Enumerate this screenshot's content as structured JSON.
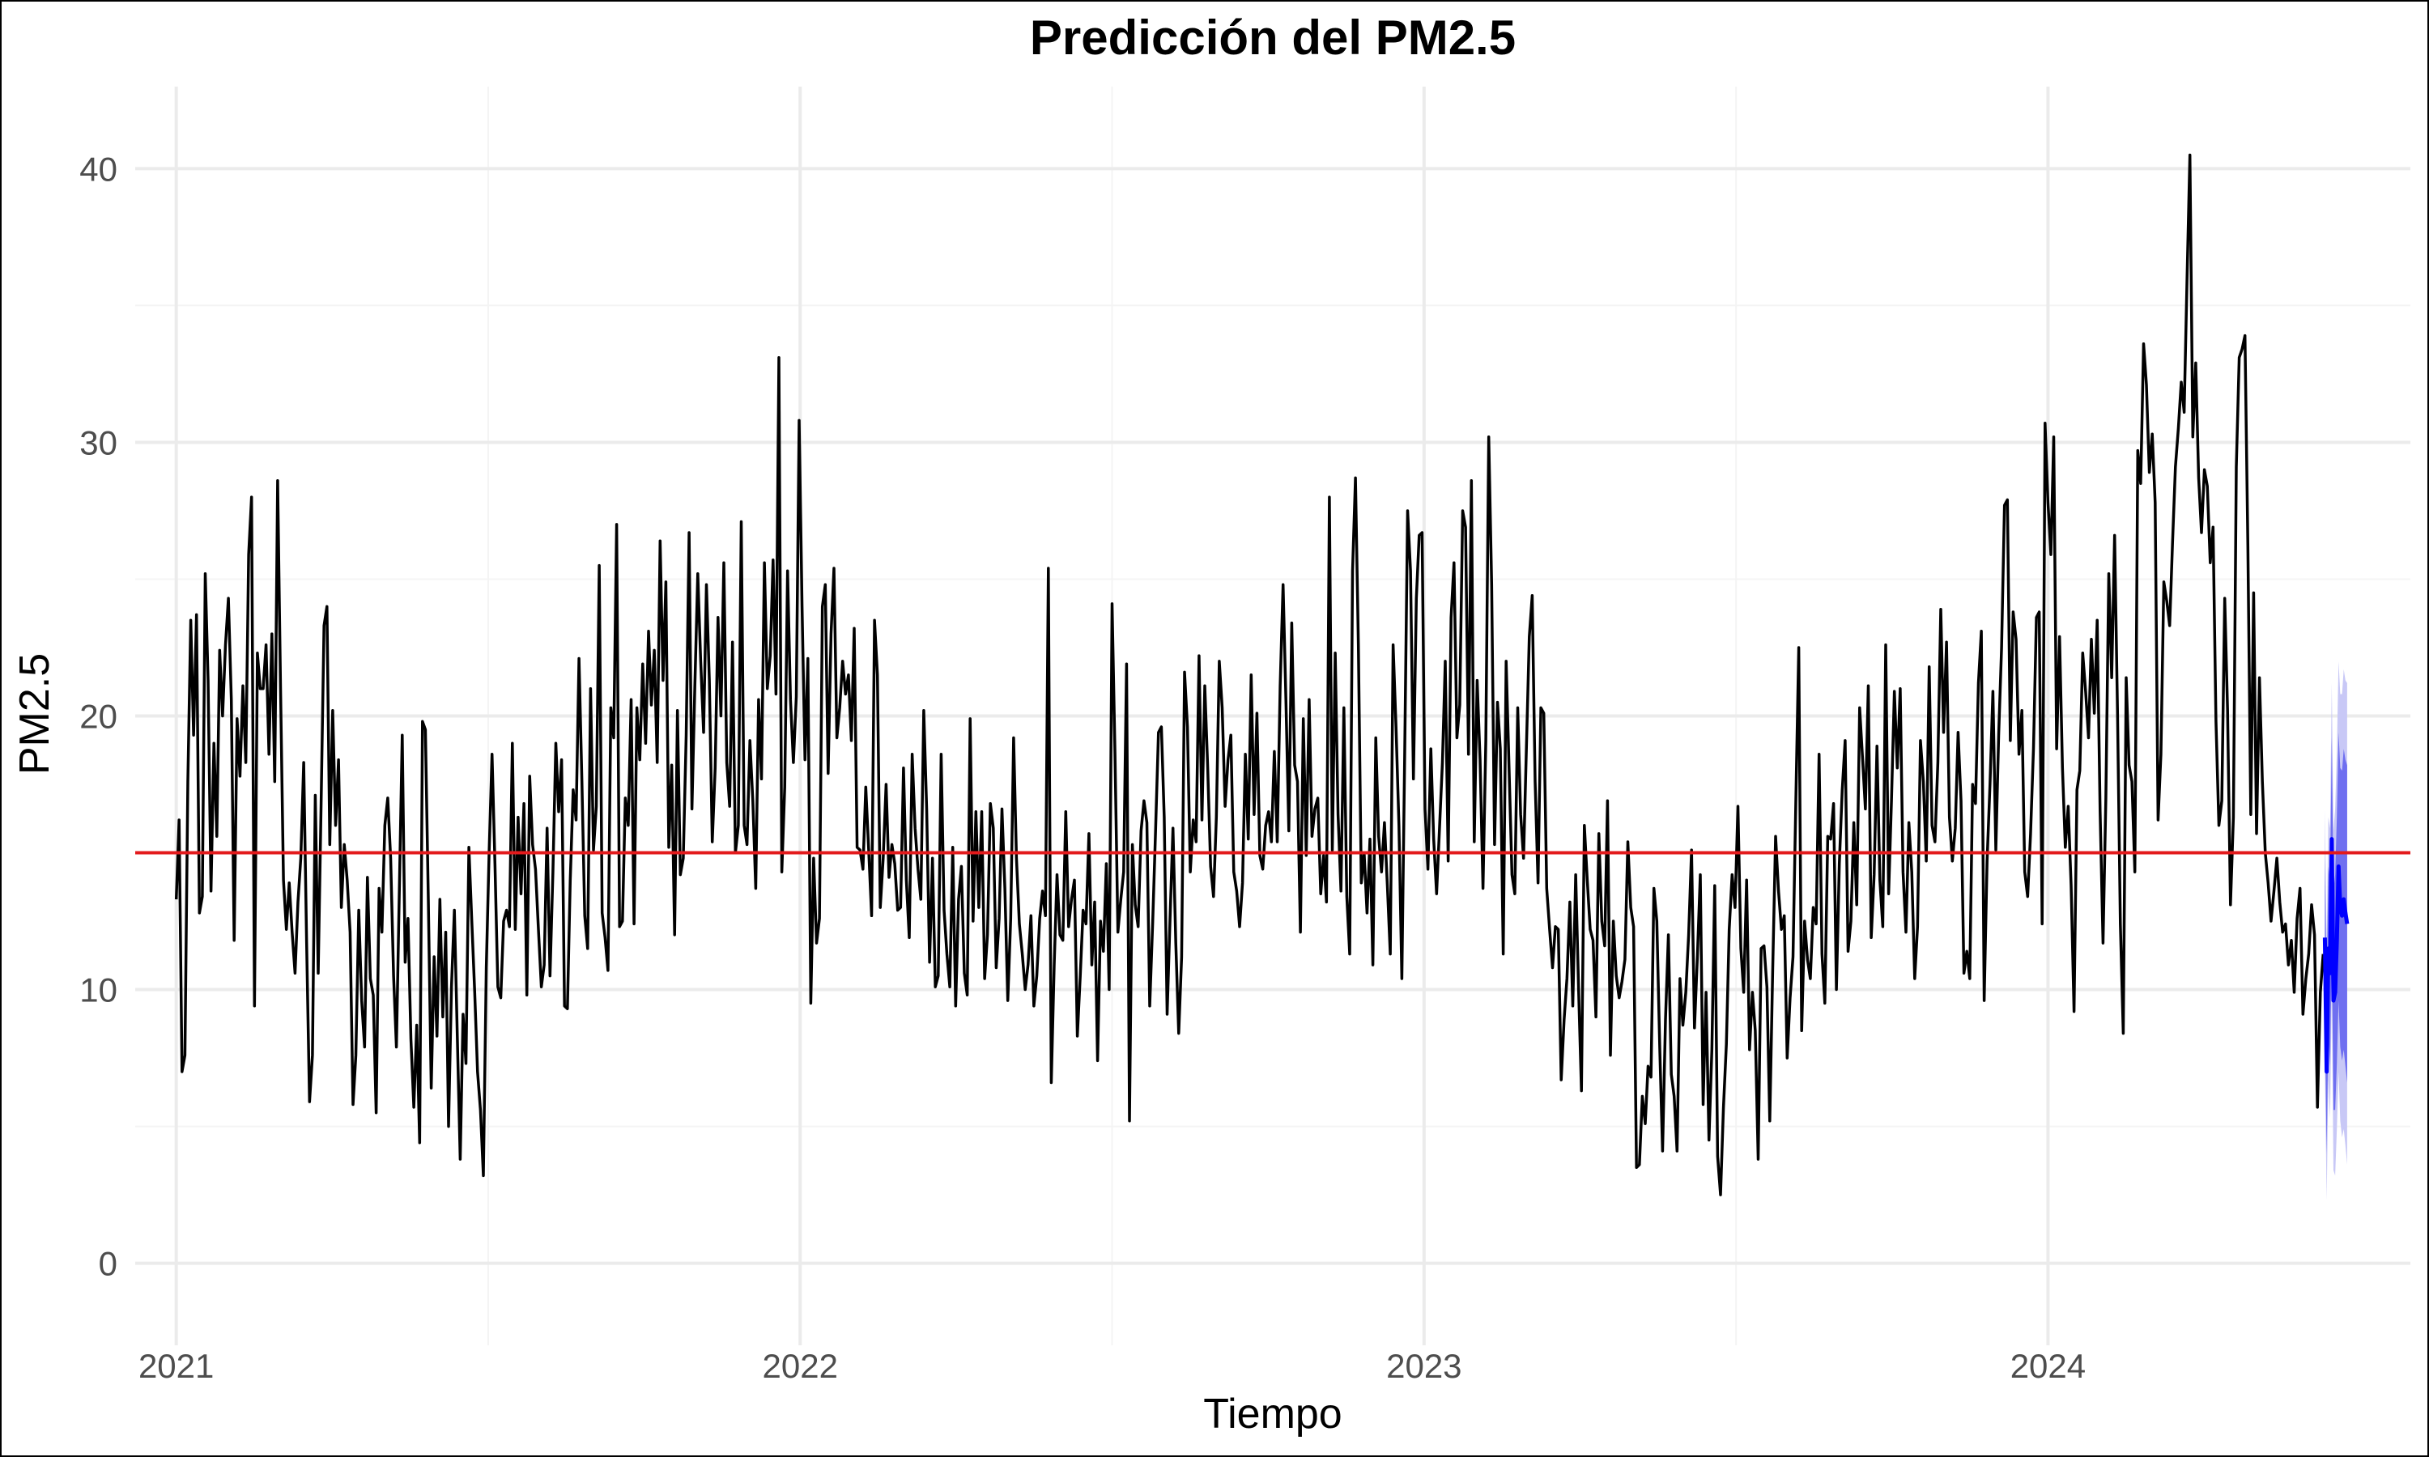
{
  "chart_data": {
    "type": "line",
    "title": "Predicción del PM2.5",
    "xlabel": "Tiempo",
    "ylabel": "PM2.5",
    "x_range": [
      "2020-12-08",
      "2024-07-31"
    ],
    "ylim": [
      -3,
      43
    ],
    "x_ticks": [
      {
        "value": "2021-01-01",
        "label": "2021"
      },
      {
        "value": "2022-01-01",
        "label": "2022"
      },
      {
        "value": "2023-01-01",
        "label": "2023"
      },
      {
        "value": "2024-01-01",
        "label": "2024"
      }
    ],
    "y_ticks": [
      0,
      10,
      20,
      30,
      40
    ],
    "grid": true,
    "legend": "none",
    "reference_line": {
      "value": 15,
      "color": "#e31a1c"
    },
    "series": [
      {
        "color": "#000000",
        "x_start": "2021-01-01",
        "x_end": "2024-06-10",
        "values": [
          13.3,
          16.2,
          7.0,
          7.6,
          17.6,
          23.5,
          19.3,
          23.7,
          12.8,
          13.4,
          25.2,
          21.3,
          13.6,
          19.0,
          15.6,
          22.4,
          20.0,
          22.6,
          24.3,
          20.6,
          11.8,
          19.9,
          17.8,
          21.1,
          18.3,
          25.9,
          28.0,
          9.4,
          22.3,
          21.0,
          21.0,
          22.6,
          18.6,
          23.0,
          17.6,
          28.6,
          21.0,
          14.0,
          12.2,
          13.9,
          12.1,
          10.6,
          13.2,
          14.8,
          18.3,
          11.7,
          5.9,
          7.6,
          17.1,
          10.6,
          16.8,
          23.3,
          24.0,
          15.3,
          20.2,
          16.0,
          18.4,
          13.0,
          15.3,
          14.0,
          12.1,
          5.8,
          7.6,
          12.9,
          9.6,
          7.9,
          14.1,
          10.4,
          9.8,
          5.5,
          13.7,
          12.1,
          16.0,
          17.0,
          14.8,
          10.5,
          7.9,
          13.6,
          19.3,
          11.0,
          12.6,
          8.2,
          5.7,
          8.7,
          4.4,
          19.8,
          19.5,
          13.3,
          6.4,
          11.2,
          8.3,
          13.3,
          9.0,
          12.1,
          5.0,
          10.1,
          12.9,
          8.3,
          3.8,
          9.1,
          7.3,
          15.2,
          12.5,
          9.9,
          7.0,
          5.6,
          3.2,
          10.8,
          15.0,
          18.6,
          14.6,
          10.1,
          9.7,
          12.5,
          12.9,
          12.3,
          19.0,
          12.2,
          16.3,
          13.5,
          16.8,
          9.8,
          17.8,
          15.3,
          14.4,
          12.2,
          10.1,
          10.9,
          15.9,
          10.5,
          14.3,
          19.0,
          16.5,
          18.4,
          9.4,
          9.3,
          14.0,
          17.3,
          16.2,
          22.1,
          17.6,
          12.7,
          11.5,
          21.0,
          15.1,
          16.7,
          25.5,
          12.8,
          11.9,
          10.7,
          20.3,
          19.2,
          27.0,
          12.3,
          12.5,
          17.0,
          16.0,
          20.6,
          12.4,
          20.3,
          18.4,
          21.9,
          19.0,
          23.1,
          20.4,
          22.4,
          18.3,
          26.4,
          21.3,
          24.9,
          15.2,
          18.2,
          12.0,
          20.2,
          14.2,
          14.8,
          19.3,
          26.7,
          16.6,
          21.1,
          25.2,
          22.0,
          19.4,
          24.8,
          21.3,
          15.4,
          18.1,
          23.6,
          20.0,
          25.6,
          18.3,
          16.7,
          22.7,
          15.0,
          16.0,
          27.1,
          16.0,
          15.3,
          19.1,
          16.9,
          13.7,
          20.6,
          17.7,
          25.6,
          21.0,
          22.2,
          25.7,
          20.8,
          33.1,
          14.3,
          17.4,
          25.3,
          20.6,
          18.3,
          20.7,
          30.8,
          24.0,
          18.4,
          22.1,
          9.5,
          14.8,
          11.7,
          12.6,
          24.0,
          24.8,
          17.9,
          23.0,
          25.4,
          19.2,
          20.3,
          22.0,
          20.8,
          21.5,
          19.1,
          23.2,
          15.2,
          15.1,
          14.4,
          17.4,
          15.1,
          12.7,
          23.5,
          21.5,
          13.0,
          14.8,
          17.5,
          14.1,
          15.3,
          14.6,
          12.9,
          13.0,
          18.1,
          14.0,
          11.9,
          18.6,
          15.9,
          14.4,
          13.3,
          20.2,
          16.6,
          11.0,
          14.8,
          10.1,
          10.5,
          18.6,
          12.9,
          11.3,
          10.1,
          15.2,
          9.4,
          13.3,
          14.5,
          10.6,
          9.8,
          19.9,
          12.5,
          16.5,
          13.0,
          16.5,
          10.4,
          12.0,
          16.8,
          15.9,
          10.8,
          12.6,
          16.6,
          13.7,
          9.6,
          12.6,
          19.2,
          14.8,
          12.4,
          11.3,
          10.0,
          10.9,
          12.7,
          9.4,
          10.5,
          12.6,
          13.6,
          12.7,
          25.4,
          6.6,
          10.9,
          14.2,
          12.0,
          11.8,
          16.5,
          12.3,
          13.3,
          14.0,
          8.3,
          10.5,
          12.9,
          12.4,
          15.7,
          10.9,
          13.2,
          7.4,
          12.5,
          11.4,
          14.6,
          10.0,
          24.1,
          18.6,
          12.1,
          13.3,
          14.3,
          21.9,
          5.2,
          15.3,
          13.1,
          12.3,
          15.8,
          16.9,
          16.1,
          9.4,
          12.4,
          15.8,
          19.4,
          19.6,
          16.3,
          9.1,
          12.6,
          15.9,
          11.7,
          8.4,
          11.2,
          21.6,
          19.6,
          14.3,
          16.2,
          15.4,
          22.2,
          16.2,
          21.1,
          18.1,
          14.5,
          13.4,
          16.3,
          22.0,
          20.3,
          16.7,
          18.4,
          19.3,
          14.3,
          13.6,
          12.3,
          13.9,
          18.6,
          15.5,
          21.5,
          16.4,
          20.1,
          14.9,
          14.4,
          16.0,
          16.5,
          15.4,
          18.7,
          15.4,
          21.1,
          24.8,
          20.6,
          15.8,
          23.4,
          18.2,
          17.6,
          12.1,
          19.9,
          14.9,
          20.6,
          15.6,
          16.6,
          17.0,
          13.5,
          14.9,
          13.2,
          28.0,
          15.1,
          22.3,
          16.4,
          13.6,
          20.3,
          13.4,
          11.3,
          25.3,
          28.7,
          22.6,
          13.9,
          15.0,
          12.8,
          15.5,
          10.9,
          19.2,
          15.6,
          14.3,
          16.1,
          13.8,
          11.3,
          22.6,
          19.6,
          16.0,
          10.4,
          18.6,
          27.5,
          25.3,
          17.7,
          24.3,
          26.6,
          26.7,
          16.6,
          14.4,
          18.8,
          15.5,
          13.5,
          15.9,
          18.3,
          22.0,
          14.7,
          23.6,
          25.6,
          19.2,
          20.4,
          27.5,
          26.9,
          18.6,
          28.6,
          15.4,
          21.3,
          18.4,
          13.7,
          19.1,
          30.2,
          24.8,
          15.3,
          20.5,
          18.8,
          11.3,
          22.0,
          18.1,
          14.2,
          13.5,
          20.3,
          16.4,
          14.8,
          18.8,
          22.9,
          24.4,
          17.6,
          13.9,
          20.3,
          20.1,
          13.7,
          12.2,
          10.8,
          12.3,
          12.2,
          6.7,
          8.9,
          10.4,
          13.2,
          9.4,
          14.2,
          10.0,
          6.3,
          16.0,
          14.0,
          12.2,
          11.8,
          9.0,
          15.7,
          12.5,
          11.6,
          16.9,
          7.6,
          12.5,
          10.5,
          9.7,
          10.3,
          11.1,
          15.4,
          13.0,
          12.3,
          3.5,
          3.6,
          6.1,
          5.1,
          7.2,
          6.8,
          13.7,
          12.5,
          7.9,
          4.1,
          8.9,
          12.0,
          6.9,
          6.1,
          4.1,
          10.4,
          8.7,
          9.9,
          12.0,
          15.1,
          8.6,
          11.2,
          14.2,
          5.8,
          9.9,
          4.5,
          7.8,
          13.8,
          3.9,
          2.5,
          5.7,
          8.0,
          12.2,
          14.2,
          13.0,
          16.7,
          11.5,
          9.9,
          14.0,
          7.8,
          9.9,
          8.5,
          3.8,
          11.5,
          11.6,
          10.1,
          5.2,
          10.7,
          15.6,
          13.6,
          12.2,
          12.7,
          7.5,
          9.7,
          11.2,
          16.9,
          22.5,
          8.5,
          12.5,
          11.1,
          10.4,
          13.0,
          12.4,
          18.6,
          11.3,
          9.5,
          15.6,
          15.5,
          16.8,
          10.0,
          14.6,
          17.3,
          19.1,
          11.4,
          12.5,
          16.1,
          13.1,
          20.3,
          18.5,
          16.6,
          21.1,
          11.9,
          14.2,
          18.9,
          14.0,
          12.3,
          22.6,
          13.5,
          16.9,
          20.9,
          18.1,
          21.0,
          14.3,
          12.1,
          16.1,
          14.3,
          10.4,
          12.3,
          19.1,
          17.6,
          14.7,
          21.8,
          16.0,
          15.4,
          18.3,
          23.9,
          19.4,
          22.7,
          16.3,
          14.7,
          15.9,
          19.4,
          16.9,
          10.6,
          11.4,
          10.4,
          17.5,
          16.8,
          21.2,
          23.1,
          9.6,
          14.7,
          17.5,
          20.9,
          15.1,
          19.3,
          22.5,
          27.7,
          27.9,
          19.1,
          23.8,
          22.8,
          18.6,
          20.2,
          14.3,
          13.4,
          15.7,
          18.8,
          23.6,
          23.8,
          12.4,
          30.7,
          27.8,
          25.9,
          30.2,
          18.8,
          22.9,
          18.1,
          15.2,
          16.7,
          13.8,
          9.2,
          17.3,
          18.0,
          22.3,
          20.9,
          19.2,
          22.8,
          20.1,
          23.5,
          16.5,
          11.7,
          17.0,
          25.2,
          21.4,
          26.6,
          20.1,
          12.4,
          8.4,
          21.4,
          18.2,
          17.6,
          14.3,
          29.7,
          28.5,
          33.6,
          32.1,
          28.9,
          30.3,
          27.8,
          16.2,
          18.6,
          24.9,
          24.2,
          23.3,
          26.3,
          29.1,
          30.5,
          32.2,
          31.1,
          35.9,
          40.5,
          30.2,
          32.9,
          28.7,
          26.7,
          29.0,
          28.4,
          25.6,
          26.9,
          19.8,
          16.0,
          16.9,
          24.3,
          20.2,
          13.1,
          16.3,
          29.1,
          33.1,
          33.4,
          33.9,
          26.2,
          16.4,
          24.5,
          15.7,
          21.4,
          17.6,
          15.0,
          13.9,
          12.5,
          13.6,
          14.8,
          13.2,
          12.1,
          12.4,
          10.9,
          11.8,
          9.9,
          12.6,
          13.7,
          9.1,
          10.4,
          11.3,
          13.1,
          12.0,
          5.7,
          9.9,
          11.3
        ]
      },
      {
        "color": "#0000ff",
        "x_start": "2024-06-11",
        "x_end": "2024-06-24",
        "values": [
          11.9,
          7.0,
          11.5,
          10.6,
          15.5,
          9.6,
          9.9,
          11.8,
          14.5,
          13.0,
          12.7,
          13.3,
          12.8,
          12.4
        ],
        "interval_80": {
          "lower": [
            8.9,
            4.0,
            8.5,
            7.2,
            11.8,
            5.6,
            5.6,
            7.3,
            9.6,
            7.9,
            7.4,
            7.8,
            7.2,
            6.6
          ],
          "upper": [
            14.9,
            10.0,
            14.5,
            14.0,
            19.2,
            13.6,
            14.2,
            16.3,
            19.4,
            18.1,
            18.0,
            18.8,
            18.4,
            18.2
          ],
          "color": "#6f6ff0"
        },
        "interval_95": {
          "lower": [
            7.2,
            2.3,
            6.7,
            5.3,
            9.8,
            3.4,
            3.2,
            4.9,
            7.0,
            5.2,
            4.6,
            4.9,
            4.3,
            3.6
          ],
          "upper": [
            16.6,
            11.7,
            16.3,
            15.9,
            21.2,
            15.8,
            16.6,
            18.7,
            22.0,
            20.8,
            20.8,
            21.7,
            21.3,
            21.2
          ],
          "color": "#c8c8f6"
        }
      }
    ]
  }
}
